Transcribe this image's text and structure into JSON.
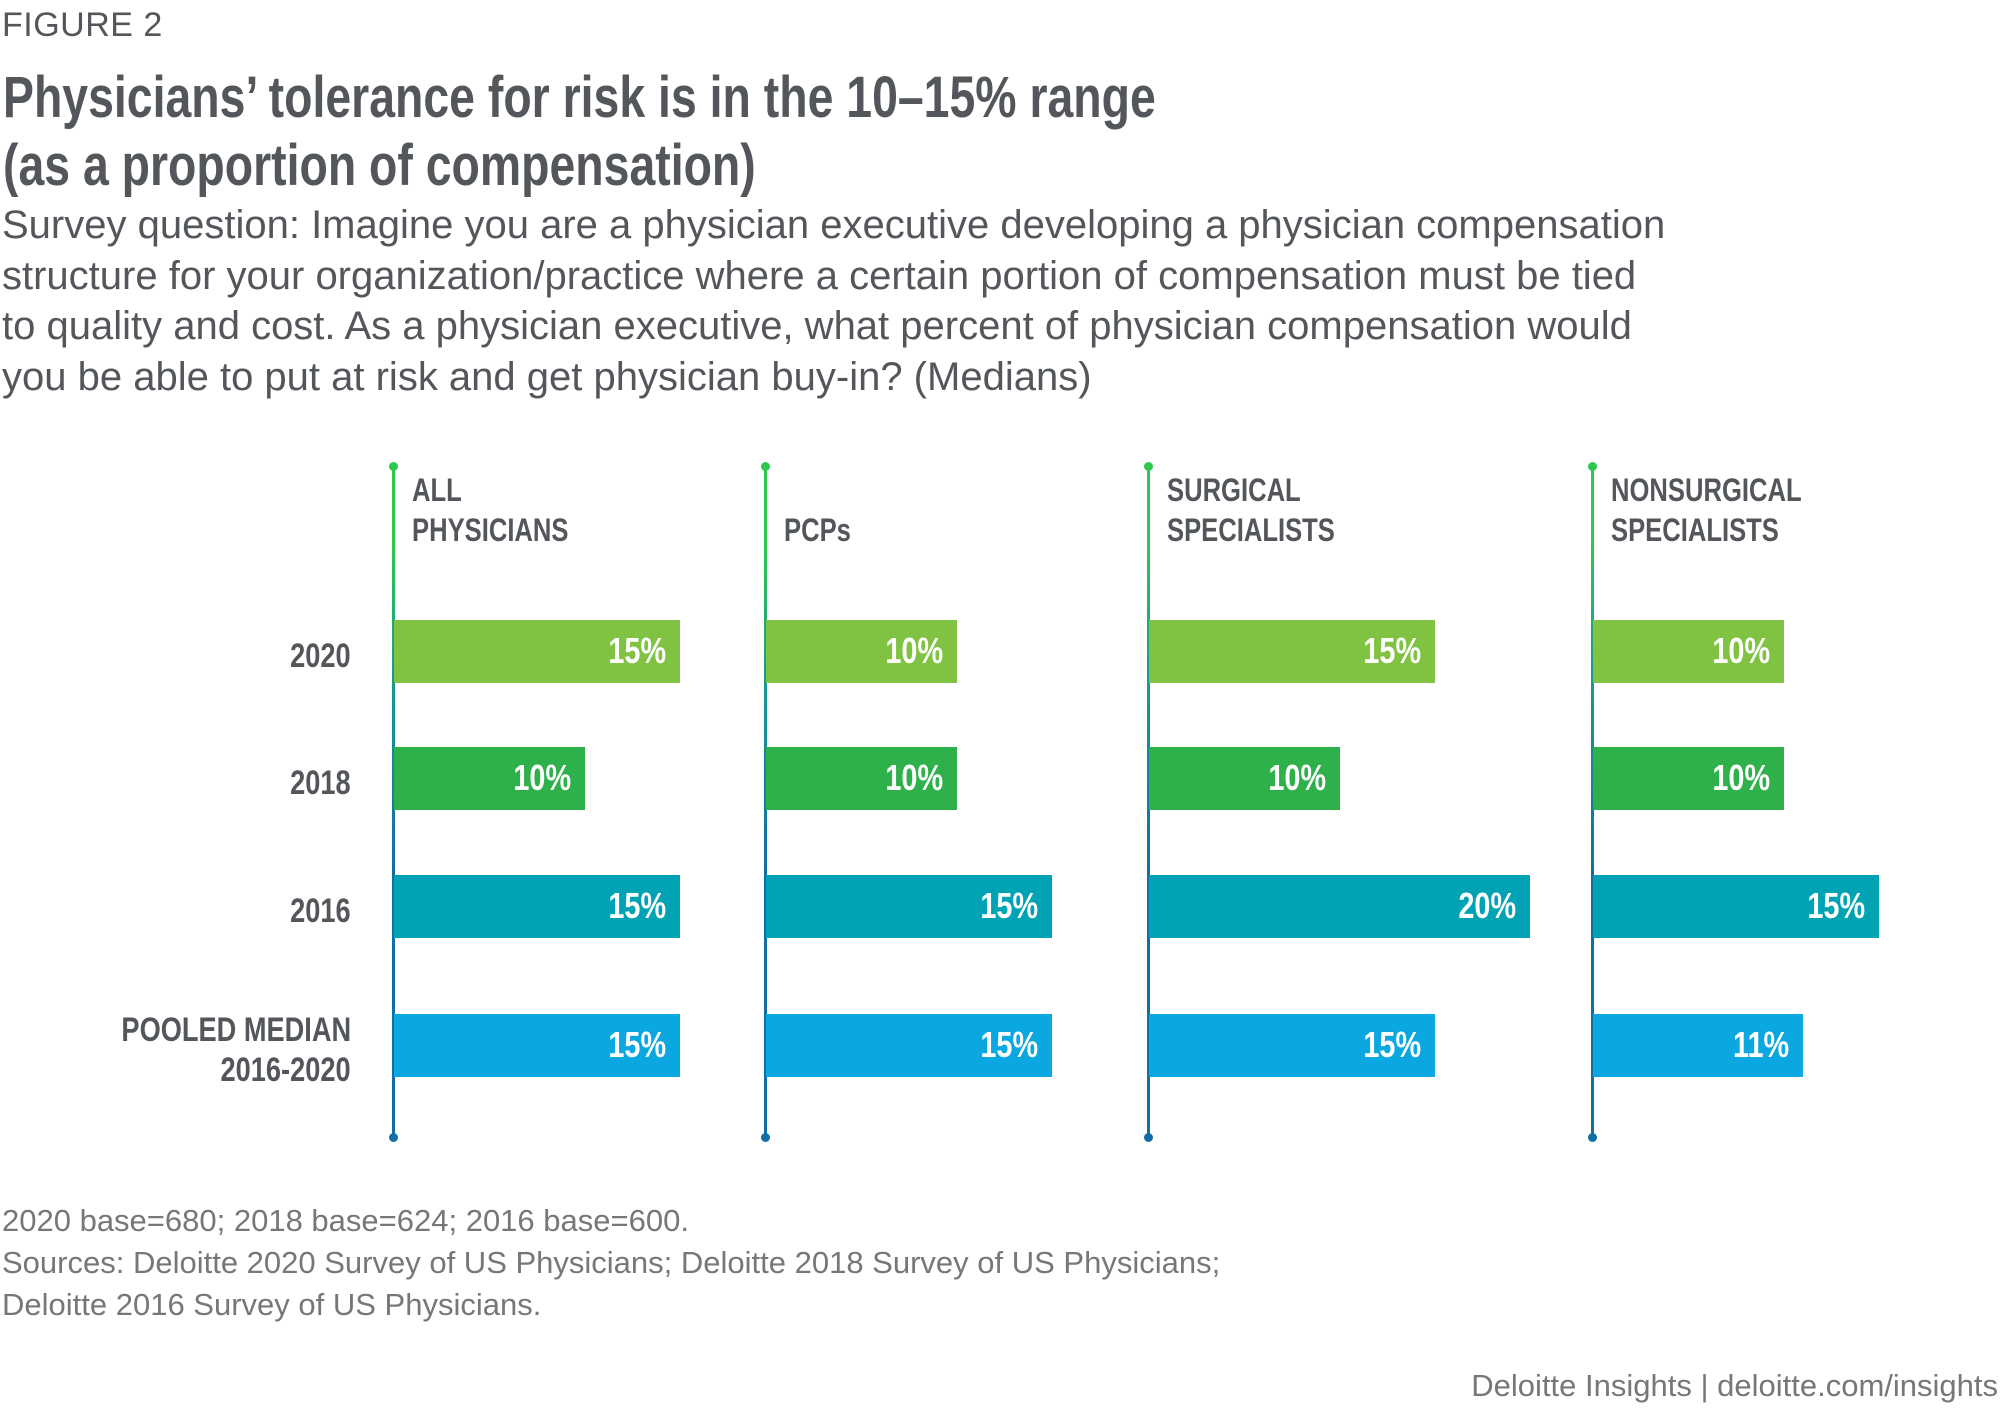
{
  "figure_label": "FIGURE 2",
  "title_lines": [
    "Physicians’ tolerance for risk is in the 10–15% range",
    "(as a proportion of compensation)"
  ],
  "subtitle_lines": [
    "Survey question: Imagine you are a physician executive developing a physician compensation",
    "structure for your organization/practice where a certain portion of compensation must be tied",
    "to quality and cost. As a physician executive, what percent of physician compensation would",
    "you be able to put at risk and get physician buy-in? (Medians)"
  ],
  "footnote_lines": [
    "2020 base=680; 2018 base=624; 2016 base=600.",
    "Sources: Deloitte 2020 Survey of US Physicians; Deloitte 2018 Survey of US Physicians;",
    "Deloitte 2016 Survey of US Physicians."
  ],
  "branding": "Deloitte Insights | deloitte.com/insights",
  "colors": {
    "text": "#53565a",
    "axis_top": "#2dc84d",
    "axis_bottom": "#126fa6",
    "series": {
      "2020": "#80c342",
      "2018": "#2eb04b",
      "2016": "#00a3b4",
      "pooled": "#0aa7e0"
    }
  },
  "chart_data": {
    "type": "bar",
    "orientation": "horizontal",
    "title": "Physicians’ tolerance for risk is in the 10–15% range (as a proportion of compensation)",
    "unit": "%",
    "categories": [
      "2020",
      "2018",
      "2016",
      "POOLED MEDIAN 2016-2020"
    ],
    "category_label_lines": [
      [
        "2020"
      ],
      [
        "2018"
      ],
      [
        "2016"
      ],
      [
        "POOLED MEDIAN",
        "2016-2020"
      ]
    ],
    "category_color_keys": [
      "2020",
      "2018",
      "2016",
      "pooled"
    ],
    "panels": [
      {
        "name": "ALL PHYSICIANS",
        "heading_lines": [
          "ALL",
          "PHYSICIANS"
        ],
        "values": [
          15,
          10,
          15,
          15
        ]
      },
      {
        "name": "PCPs",
        "heading_lines": [
          "",
          "PCPs"
        ],
        "values": [
          10,
          10,
          15,
          15
        ]
      },
      {
        "name": "SURGICAL SPECIALISTS",
        "heading_lines": [
          "SURGICAL",
          "SPECIALISTS"
        ],
        "values": [
          15,
          10,
          20,
          15
        ]
      },
      {
        "name": "NONSURGICAL SPECIALISTS",
        "heading_lines": [
          "NONSURGICAL",
          "SPECIALISTS"
        ],
        "values": [
          10,
          10,
          15,
          11
        ]
      }
    ],
    "xlabel": "",
    "ylabel": "",
    "xlim": [
      0,
      20
    ],
    "grid": false,
    "legend": "none",
    "data_labels": true
  }
}
